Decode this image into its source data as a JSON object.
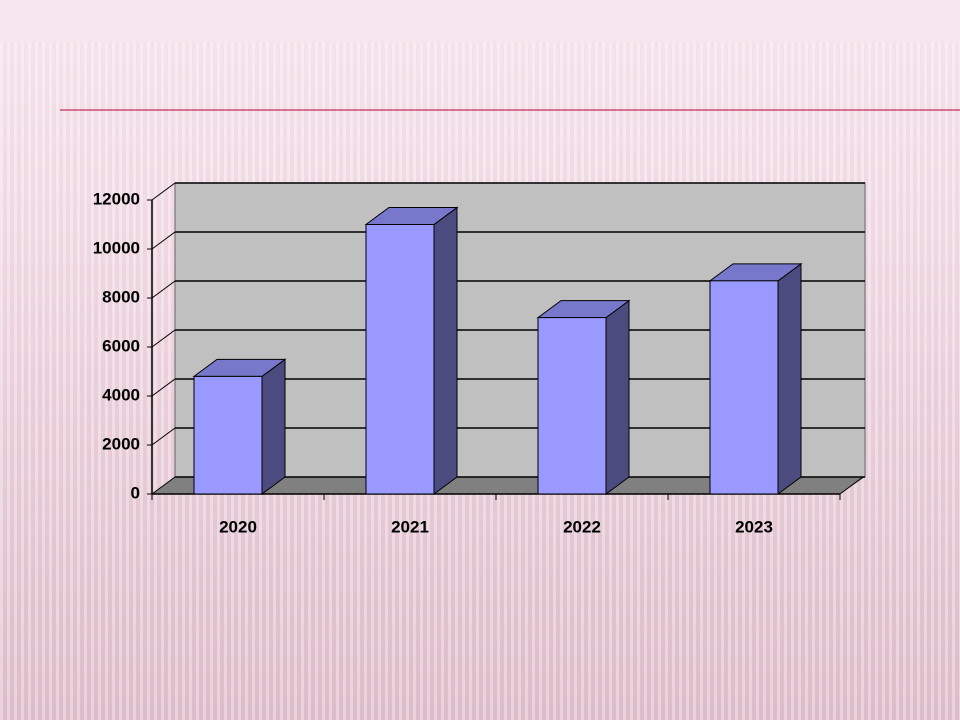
{
  "chart_data": {
    "type": "bar",
    "categories": [
      "2020",
      "2021",
      "2022",
      "2023"
    ],
    "values": [
      4800,
      11000,
      7200,
      8700
    ],
    "color": "#9999ff",
    "ylim": [
      0,
      12000
    ],
    "yticks": [
      0,
      2000,
      4000,
      6000,
      8000,
      10000,
      12000
    ],
    "grid": true
  }
}
